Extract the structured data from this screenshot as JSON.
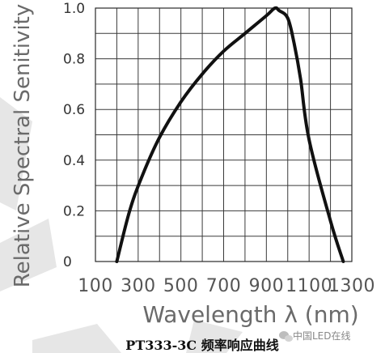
{
  "chart_data": {
    "type": "line",
    "title": "",
    "caption": "PT333-3C 频率响应曲线",
    "xlabel": "Wavelength   λ (nm)",
    "ylabel": "Relative Spectral Senitivity",
    "xlim": [
      100,
      1300
    ],
    "ylim": [
      0,
      1.0
    ],
    "x_ticks": [
      "100",
      "300",
      "500",
      "700",
      "900",
      "1100",
      "1300"
    ],
    "y_ticks": [
      "0",
      "0.2",
      "0.4",
      "0.6",
      "0.8",
      "1.0"
    ],
    "grid": true,
    "series": [
      {
        "x": [
          200,
          260,
          320,
          400,
          500,
          600,
          700,
          800,
          900,
          940,
          960,
          1000,
          1030,
          1060,
          1100,
          1200,
          1260
        ],
        "y": [
          0.0,
          0.2,
          0.34,
          0.49,
          0.63,
          0.74,
          0.83,
          0.9,
          0.97,
          1.0,
          0.99,
          0.96,
          0.86,
          0.72,
          0.48,
          0.16,
          0.0
        ]
      }
    ]
  },
  "watermark": {
    "text": "中国LED在线",
    "icon": "wechat-icon"
  }
}
